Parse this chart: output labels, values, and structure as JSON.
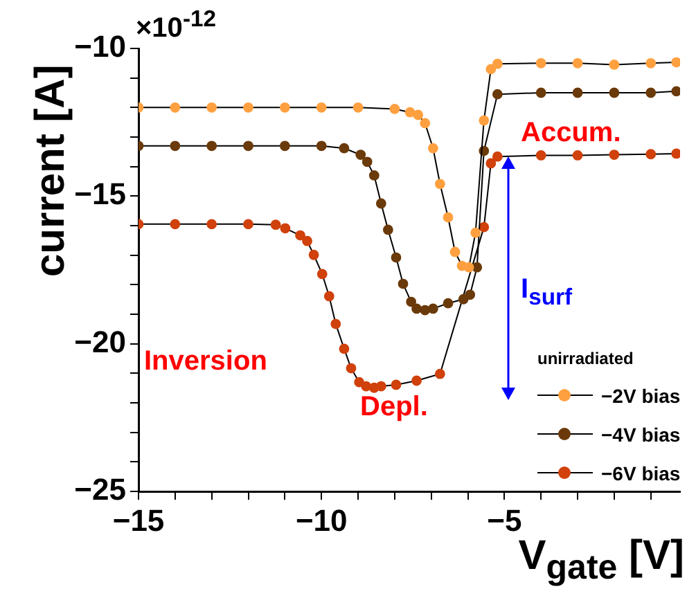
{
  "chart_data": {
    "type": "line",
    "xlabel": "V$_{gate}$ [V]",
    "ylabel": "current [A]",
    "legend_title": "unirradiated",
    "legend": "bottom right",
    "marker": "circle",
    "grid": false,
    "xlim": [
      -15,
      -0.2
    ],
    "ylim": [
      -25,
      -10
    ],
    "xticks": [
      -15,
      {
        "value": -14,
        "label": null
      },
      {
        "value": -13,
        "label": null
      },
      {
        "value": -12,
        "label": null
      },
      {
        "value": -11,
        "label": null
      },
      -10,
      {
        "value": -9,
        "label": null
      },
      {
        "value": -8,
        "label": null
      },
      {
        "value": -7,
        "label": null
      },
      {
        "value": -6,
        "label": null
      },
      -5,
      {
        "value": -4,
        "label": null
      },
      {
        "value": -3,
        "label": null
      },
      {
        "value": -2,
        "label": null
      },
      {
        "value": -1,
        "label": null
      }
    ],
    "yticks": [
      -25,
      {
        "value": -24,
        "label": null
      },
      {
        "value": -23,
        "label": null
      },
      {
        "value": -22,
        "label": null
      },
      {
        "value": -21,
        "label": null
      },
      -20,
      {
        "value": -19,
        "label": null
      },
      {
        "value": -18,
        "label": null
      },
      {
        "value": -17,
        "label": null
      },
      {
        "value": -16,
        "label": null
      },
      -15,
      {
        "value": -14,
        "label": null
      },
      {
        "value": -13,
        "label": null
      },
      {
        "value": -12,
        "label": null
      },
      {
        "value": -11,
        "label": null
      },
      -10
    ],
    "annotations": [
      "×10$^{-12}$",
      "Inversion",
      "Depl.",
      "Accum.",
      "I$_{surf}$"
    ],
    "series": [
      {
        "name": "−2V bias",
        "color": "#ffa040",
        "x": [
          -15,
          -14,
          -13,
          -12,
          -11,
          -10,
          -9,
          -8,
          -7.58,
          -7.36,
          -7.17,
          -6.95,
          -6.76,
          -6.54,
          -6.35,
          -6.16,
          -5.97,
          -5.79,
          -5.56,
          -5.37,
          -5.19,
          -4,
          -3,
          -2,
          -1,
          -0.3
        ],
        "values": [
          -12.0,
          -12.0,
          -12.0,
          -12.0,
          -12.0,
          -12.0,
          -12.0,
          -12.05,
          -12.16,
          -12.25,
          -12.53,
          -13.38,
          -14.59,
          -15.72,
          -16.89,
          -17.36,
          -17.41,
          -16.24,
          -12.44,
          -10.7,
          -10.52,
          -10.5,
          -10.5,
          -10.55,
          -10.5,
          -10.47
        ]
      },
      {
        "name": "−4V bias",
        "color": "#6b3a0a",
        "x": [
          -15,
          -14,
          -13,
          -12,
          -11,
          -10,
          -9.38,
          -8.93,
          -8.75,
          -8.56,
          -8.37,
          -8.18,
          -7.96,
          -7.77,
          -7.55,
          -7.4,
          -7.17,
          -6.95,
          -6.54,
          -6.12,
          -5.94,
          -5.75,
          -5.56,
          -5.19,
          -4,
          -3,
          -2,
          -1,
          -0.3
        ],
        "values": [
          -13.3,
          -13.3,
          -13.3,
          -13.3,
          -13.3,
          -13.3,
          -13.38,
          -13.6,
          -13.84,
          -14.3,
          -15.25,
          -16.14,
          -17.08,
          -17.97,
          -18.58,
          -18.81,
          -18.86,
          -18.81,
          -18.63,
          -18.49,
          -18.34,
          -17.41,
          -13.47,
          -11.55,
          -11.5,
          -11.5,
          -11.5,
          -11.5,
          -11.45
        ]
      },
      {
        "name": "−6V bias",
        "color": "#d0410c",
        "x": [
          -15,
          -14,
          -13,
          -12,
          -11.25,
          -10.99,
          -10.58,
          -10.39,
          -10.21,
          -9.98,
          -9.79,
          -9.61,
          -9.38,
          -9.19,
          -8.97,
          -8.78,
          -8.56,
          -8.37,
          -7.96,
          -7.4,
          -6.76,
          -5.56,
          -5.37,
          -5.19,
          -4,
          -3,
          -2,
          -1,
          -0.3
        ],
        "values": [
          -15.95,
          -15.95,
          -15.95,
          -15.95,
          -15.97,
          -16.09,
          -16.33,
          -16.52,
          -16.99,
          -17.64,
          -18.39,
          -19.33,
          -20.17,
          -20.83,
          -21.3,
          -21.44,
          -21.49,
          -21.44,
          -21.39,
          -21.25,
          -21.02,
          -16.05,
          -13.89,
          -13.66,
          -13.62,
          -13.62,
          -13.6,
          -13.58,
          -13.56
        ]
      }
    ]
  }
}
